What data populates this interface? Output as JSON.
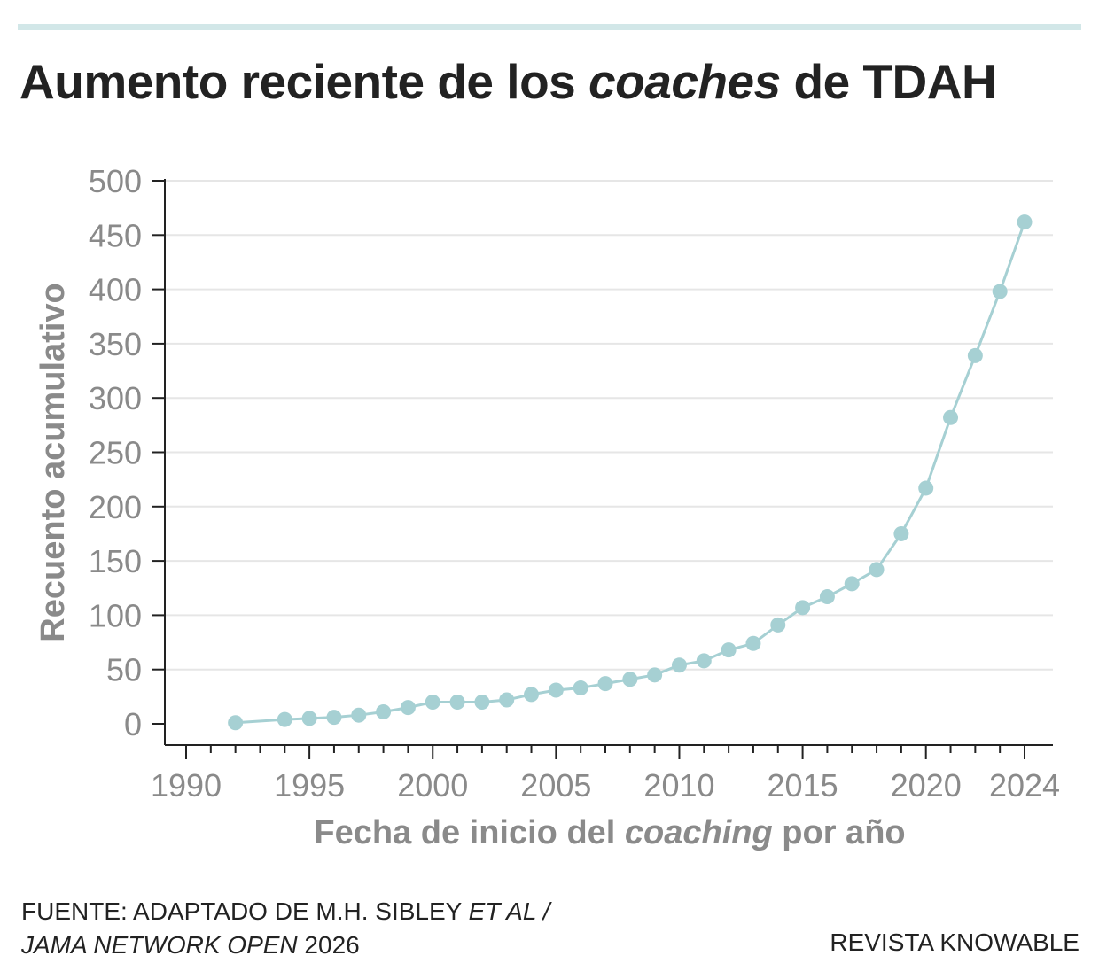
{
  "title": {
    "before": "Aumento reciente de los ",
    "italic": "coaches",
    "after": " de TDAH"
  },
  "source": {
    "line1_a": "FUENTE: ADAPTADO DE M.H. SIBLEY ",
    "line1_i": "ET AL /",
    "line2_i": "JAMA NETWORK OPEN",
    "line2_b": " 2026"
  },
  "credit": "REVISTA KNOWABLE",
  "colors": {
    "series": "#a6d0d3",
    "rule": "#d2e7e8",
    "axis": "#222222",
    "grid": "#e6e6e6",
    "tick_text": "#8a8a8a"
  },
  "chart_data": {
    "type": "line",
    "xlabel": {
      "before": "Fecha de inicio del ",
      "italic": "coaching",
      "after": " por año"
    },
    "ylabel": "Recuento acumulativo",
    "xlim": [
      1990,
      2024
    ],
    "ylim": [
      0,
      500
    ],
    "xticks": [
      1990,
      1995,
      2000,
      2005,
      2010,
      2015,
      2020,
      2024
    ],
    "yticks": [
      0,
      50,
      100,
      150,
      200,
      250,
      300,
      350,
      400,
      450,
      500
    ],
    "grid": "horizontal",
    "x": [
      1992,
      1994,
      1995,
      1996,
      1997,
      1998,
      1999,
      2000,
      2001,
      2002,
      2003,
      2004,
      2005,
      2006,
      2007,
      2008,
      2009,
      2010,
      2011,
      2012,
      2013,
      2014,
      2015,
      2016,
      2017,
      2018,
      2019,
      2020,
      2021,
      2022,
      2023,
      2024
    ],
    "y": [
      1,
      4,
      5,
      6,
      8,
      11,
      15,
      20,
      20,
      20,
      22,
      27,
      31,
      33,
      37,
      41,
      45,
      54,
      58,
      68,
      74,
      91,
      107,
      117,
      129,
      142,
      175,
      217,
      282,
      339,
      398,
      462
    ]
  }
}
